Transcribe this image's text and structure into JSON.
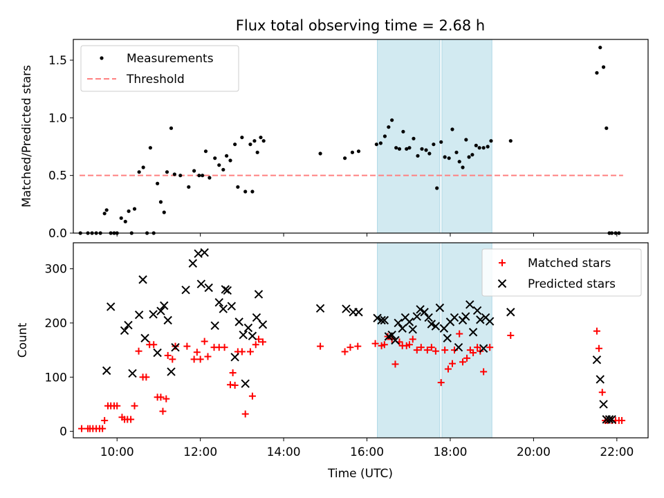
{
  "title": "Flux total observing time = 2.68 h",
  "xlabel": "Time (UTC)",
  "colors": {
    "threshold": "#ff8080",
    "matched": "#ff0000",
    "predicted": "#000000",
    "band": "#add8e6"
  },
  "chart_data": [
    {
      "type": "scatter",
      "panel": "top",
      "ylabel": "Matched/Predicted stars",
      "xlim": [
        8.95,
        22.75
      ],
      "ylim": [
        0,
        1.68
      ],
      "yticks": [
        0.0,
        0.5,
        1.0,
        1.5
      ],
      "ytick_labels": [
        "0.0",
        "0.5",
        "1.0",
        "1.5"
      ],
      "legend": {
        "position": "top-left",
        "entries": [
          "Measurements",
          "Threshold"
        ]
      },
      "shaded_intervals": [
        [
          16.25,
          17.75
        ],
        [
          17.8,
          19.0
        ]
      ],
      "threshold": {
        "name": "Threshold",
        "value": 0.5,
        "x_range": [
          9.1,
          22.15
        ]
      },
      "series": [
        {
          "name": "Measurements",
          "marker": "dot",
          "x": [
            9.12,
            9.3,
            9.4,
            9.5,
            9.6,
            9.7,
            9.75,
            9.85,
            9.93,
            10.0,
            10.1,
            10.2,
            10.28,
            10.35,
            10.42,
            10.53,
            10.63,
            10.72,
            10.8,
            10.88,
            10.97,
            11.05,
            11.13,
            11.2,
            11.3,
            11.38,
            11.52,
            11.72,
            11.85,
            11.97,
            12.05,
            12.13,
            12.22,
            12.35,
            12.45,
            12.55,
            12.63,
            12.72,
            12.83,
            12.9,
            13.0,
            13.08,
            13.2,
            13.25,
            13.3,
            13.37,
            13.45,
            13.52,
            14.88,
            15.47,
            15.65,
            15.8,
            16.23,
            16.33,
            16.43,
            16.52,
            16.6,
            16.7,
            16.78,
            16.87,
            16.95,
            17.02,
            17.12,
            17.22,
            17.32,
            17.42,
            17.5,
            17.6,
            17.68,
            17.78,
            17.87,
            17.97,
            18.05,
            18.15,
            18.22,
            18.3,
            18.38,
            18.45,
            18.53,
            18.62,
            18.7,
            18.8,
            18.9,
            18.98,
            19.45,
            21.52,
            21.6,
            21.68,
            21.75,
            21.82,
            21.88,
            21.97,
            22.05
          ],
          "y": [
            0.0,
            0.0,
            0.0,
            0.0,
            0.0,
            0.17,
            0.2,
            0.0,
            0.0,
            0.0,
            0.13,
            0.1,
            0.19,
            0.0,
            0.21,
            0.53,
            0.57,
            0.0,
            0.74,
            0.0,
            0.43,
            0.27,
            0.18,
            0.53,
            0.91,
            0.51,
            0.5,
            0.4,
            0.54,
            0.5,
            0.5,
            0.71,
            0.48,
            0.65,
            0.59,
            0.55,
            0.67,
            0.63,
            0.77,
            0.4,
            0.83,
            0.36,
            0.77,
            0.36,
            0.8,
            0.7,
            0.83,
            0.8,
            0.69,
            0.65,
            0.7,
            0.71,
            0.77,
            0.78,
            0.84,
            0.92,
            0.98,
            0.74,
            0.73,
            0.88,
            0.73,
            0.74,
            0.82,
            0.67,
            0.73,
            0.72,
            0.69,
            0.77,
            0.39,
            0.79,
            0.66,
            0.65,
            0.9,
            0.7,
            0.62,
            0.57,
            0.81,
            0.66,
            0.68,
            0.76,
            0.74,
            0.74,
            0.75,
            0.8,
            0.8,
            1.39,
            1.61,
            1.44,
            0.91,
            0.0,
            0.0,
            0.0,
            0.0
          ]
        }
      ]
    },
    {
      "type": "scatter",
      "panel": "bottom",
      "ylabel": "Count",
      "xlim": [
        8.95,
        22.75
      ],
      "ylim": [
        -12,
        348
      ],
      "yticks": [
        0,
        100,
        200,
        300
      ],
      "ytick_labels": [
        "0",
        "100",
        "200",
        "300"
      ],
      "xticks": [
        10,
        12,
        14,
        16,
        18,
        20,
        22
      ],
      "xtick_labels": [
        "10:00",
        "12:00",
        "14:00",
        "16:00",
        "18:00",
        "20:00",
        "22:00"
      ],
      "legend": {
        "position": "top-right",
        "entries": [
          "Matched stars",
          "Predicted stars"
        ]
      },
      "shaded_intervals": [
        [
          16.25,
          17.75
        ],
        [
          17.8,
          19.0
        ]
      ],
      "series": [
        {
          "name": "Matched stars",
          "marker": "plus",
          "x": [
            9.15,
            9.3,
            9.35,
            9.42,
            9.5,
            9.58,
            9.65,
            9.7,
            9.78,
            9.85,
            9.93,
            10.0,
            10.12,
            10.18,
            10.25,
            10.33,
            10.42,
            10.52,
            10.62,
            10.7,
            10.78,
            10.88,
            10.97,
            11.05,
            11.1,
            11.18,
            11.22,
            11.33,
            11.4,
            11.68,
            11.85,
            11.92,
            12.0,
            12.1,
            12.18,
            12.33,
            12.45,
            12.58,
            12.72,
            12.78,
            12.83,
            12.9,
            13.0,
            13.08,
            13.2,
            13.25,
            13.33,
            13.4,
            13.5,
            14.88,
            15.47,
            15.6,
            15.78,
            16.2,
            16.35,
            16.42,
            16.5,
            16.6,
            16.68,
            16.78,
            16.85,
            16.95,
            17.02,
            17.1,
            17.2,
            17.3,
            17.45,
            17.55,
            17.65,
            17.78,
            17.87,
            17.95,
            18.05,
            18.1,
            18.22,
            18.3,
            18.4,
            18.48,
            18.55,
            18.65,
            18.72,
            18.8,
            18.95,
            19.45,
            21.52,
            21.57,
            21.65,
            21.72,
            21.78,
            21.88,
            21.97,
            22.05,
            22.12
          ],
          "y": [
            5,
            5,
            5,
            5,
            5,
            5,
            5,
            20,
            47,
            47,
            47,
            47,
            26,
            22,
            22,
            22,
            47,
            148,
            100,
            100,
            160,
            160,
            63,
            63,
            37,
            60,
            140,
            133,
            157,
            157,
            133,
            146,
            133,
            166,
            138,
            155,
            155,
            155,
            86,
            108,
            85,
            147,
            147,
            32,
            147,
            65,
            160,
            170,
            165,
            157,
            147,
            155,
            157,
            162,
            158,
            160,
            175,
            170,
            124,
            165,
            158,
            158,
            160,
            170,
            150,
            155,
            150,
            155,
            148,
            90,
            150,
            115,
            125,
            150,
            180,
            128,
            135,
            150,
            145,
            155,
            148,
            110,
            155,
            177,
            185,
            153,
            72,
            20,
            20,
            20,
            20,
            20,
            20
          ]
        },
        {
          "name": "Predicted stars",
          "marker": "x",
          "x": [
            9.75,
            9.85,
            10.18,
            10.27,
            10.37,
            10.53,
            10.62,
            10.67,
            10.87,
            10.97,
            11.05,
            11.13,
            11.22,
            11.3,
            11.4,
            11.65,
            11.82,
            11.95,
            12.02,
            12.1,
            12.2,
            12.35,
            12.45,
            12.55,
            12.6,
            12.65,
            12.75,
            12.83,
            12.93,
            13.03,
            13.08,
            13.15,
            13.25,
            13.35,
            13.4,
            13.5,
            14.88,
            15.5,
            15.67,
            15.8,
            16.25,
            16.35,
            16.42,
            16.52,
            16.6,
            16.68,
            16.75,
            16.85,
            16.92,
            17.02,
            17.1,
            17.2,
            17.28,
            17.38,
            17.48,
            17.55,
            17.65,
            17.75,
            17.85,
            17.93,
            18.0,
            18.1,
            18.2,
            18.3,
            18.37,
            18.47,
            18.55,
            18.65,
            18.72,
            18.8,
            18.85,
            18.95,
            19.45,
            21.52,
            21.6,
            21.68,
            21.75,
            21.82,
            21.88
          ],
          "y": [
            112,
            230,
            186,
            196,
            107,
            215,
            280,
            172,
            216,
            145,
            222,
            232,
            205,
            110,
            155,
            261,
            310,
            328,
            272,
            330,
            265,
            195,
            238,
            226,
            262,
            260,
            231,
            137,
            202,
            178,
            88,
            191,
            176,
            210,
            253,
            197,
            227,
            226,
            220,
            220,
            209,
            205,
            205,
            175,
            178,
            168,
            200,
            190,
            210,
            202,
            188,
            212,
            225,
            220,
            210,
            198,
            194,
            228,
            190,
            172,
            202,
            210,
            155,
            205,
            212,
            234,
            183,
            223,
            206,
            153,
            210,
            203,
            220,
            132,
            96,
            50,
            22,
            22,
            22
          ]
        }
      ]
    }
  ]
}
